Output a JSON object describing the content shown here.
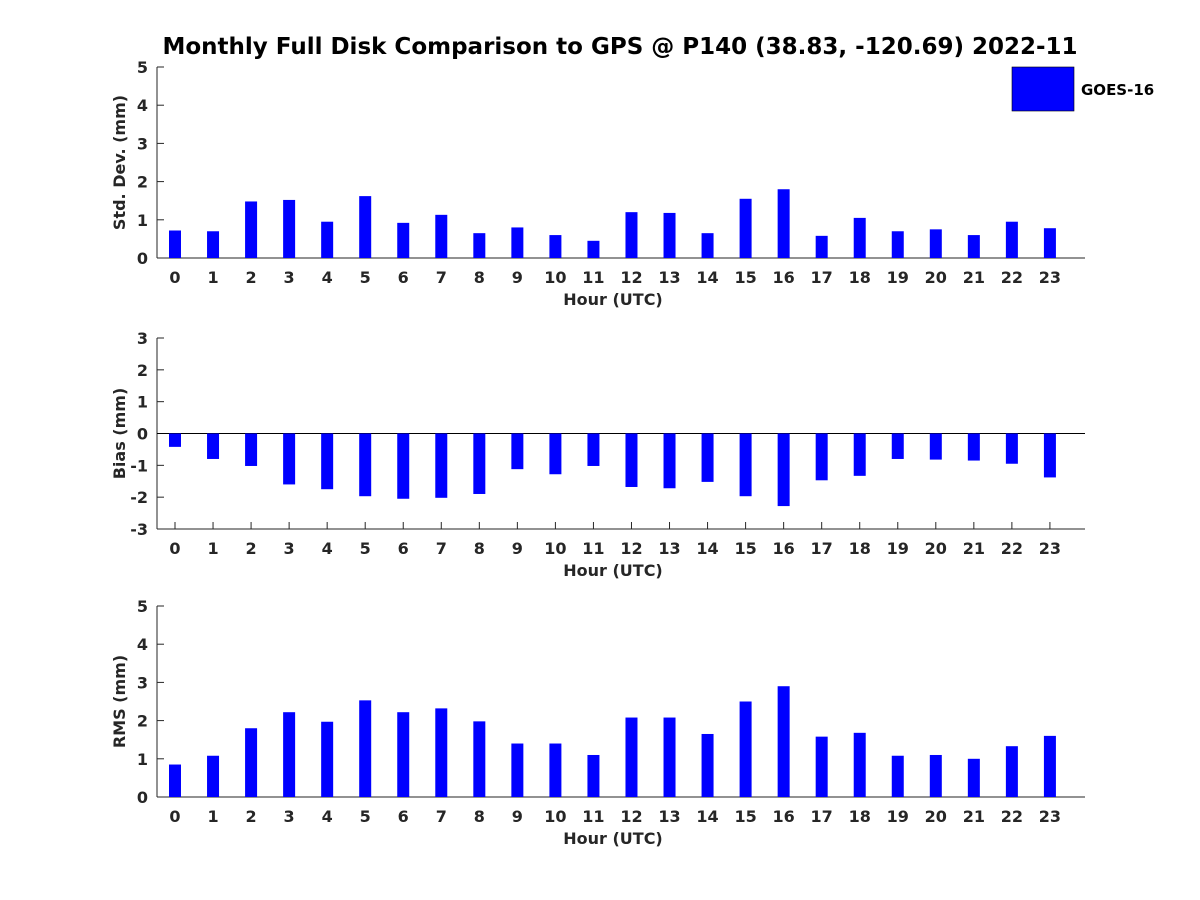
{
  "title": "Monthly Full Disk Comparison to GPS @ P140 (38.83, -120.69) 2022-11",
  "legend": {
    "label": "GOES-16",
    "placement": "top-right"
  },
  "colors": {
    "bar": "#0000ff",
    "axis": "#262626",
    "text": "#000000"
  },
  "chart_data": [
    {
      "type": "bar",
      "xlabel": "Hour (UTC)",
      "ylabel": "Std. Dev. (mm)",
      "ylim": [
        0,
        5
      ],
      "yticks": [
        0,
        1,
        2,
        3,
        4,
        5
      ],
      "categories": [
        "0",
        "1",
        "2",
        "3",
        "4",
        "5",
        "6",
        "7",
        "8",
        "9",
        "10",
        "11",
        "12",
        "13",
        "14",
        "15",
        "16",
        "17",
        "18",
        "19",
        "20",
        "21",
        "22",
        "23"
      ],
      "series": [
        {
          "name": "GOES-16",
          "values": [
            0.72,
            0.7,
            1.48,
            1.52,
            0.95,
            1.62,
            0.92,
            1.13,
            0.65,
            0.8,
            0.6,
            0.45,
            1.2,
            1.18,
            0.65,
            1.55,
            1.8,
            0.58,
            1.05,
            0.7,
            0.75,
            0.6,
            0.95,
            0.78
          ]
        }
      ],
      "grid": false
    },
    {
      "type": "bar",
      "xlabel": "Hour (UTC)",
      "ylabel": "Bias (mm)",
      "ylim": [
        -3,
        3
      ],
      "yticks": [
        -3,
        -2,
        -1,
        0,
        1,
        2,
        3
      ],
      "categories": [
        "0",
        "1",
        "2",
        "3",
        "4",
        "5",
        "6",
        "7",
        "8",
        "9",
        "10",
        "11",
        "12",
        "13",
        "14",
        "15",
        "16",
        "17",
        "18",
        "19",
        "20",
        "21",
        "22",
        "23"
      ],
      "series": [
        {
          "name": "GOES-16",
          "values": [
            -0.42,
            -0.8,
            -1.02,
            -1.6,
            -1.75,
            -1.97,
            -2.05,
            -2.02,
            -1.9,
            -1.12,
            -1.28,
            -1.02,
            -1.68,
            -1.72,
            -1.52,
            -1.97,
            -2.28,
            -1.47,
            -1.33,
            -0.8,
            -0.82,
            -0.85,
            -0.95,
            -1.38
          ]
        }
      ],
      "grid": false
    },
    {
      "type": "bar",
      "xlabel": "Hour (UTC)",
      "ylabel": "RMS (mm)",
      "ylim": [
        0,
        5
      ],
      "yticks": [
        0,
        1,
        2,
        3,
        4,
        5
      ],
      "categories": [
        "0",
        "1",
        "2",
        "3",
        "4",
        "5",
        "6",
        "7",
        "8",
        "9",
        "10",
        "11",
        "12",
        "13",
        "14",
        "15",
        "16",
        "17",
        "18",
        "19",
        "20",
        "21",
        "22",
        "23"
      ],
      "series": [
        {
          "name": "GOES-16",
          "values": [
            0.85,
            1.08,
            1.8,
            2.22,
            1.97,
            2.53,
            2.22,
            2.32,
            1.98,
            1.4,
            1.4,
            1.1,
            2.08,
            2.08,
            1.65,
            2.5,
            2.9,
            1.58,
            1.68,
            1.08,
            1.1,
            1.0,
            1.33,
            1.6
          ]
        }
      ],
      "grid": false
    }
  ]
}
